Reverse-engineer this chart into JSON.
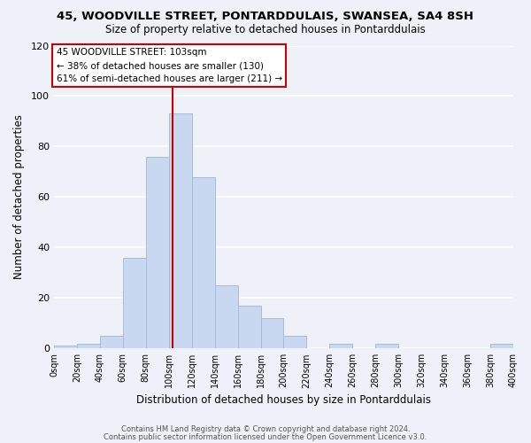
{
  "title": "45, WOODVILLE STREET, PONTARDDULAIS, SWANSEA, SA4 8SH",
  "subtitle": "Size of property relative to detached houses in Pontarddulais",
  "xlabel": "Distribution of detached houses by size in Pontarddulais",
  "ylabel": "Number of detached properties",
  "bar_color": "#c8d8f0",
  "bar_edge_color": "#a8bcd8",
  "bin_edges": [
    0,
    20,
    40,
    60,
    80,
    100,
    120,
    140,
    160,
    180,
    200,
    220,
    240,
    260,
    280,
    300,
    320,
    340,
    360,
    380,
    400
  ],
  "bar_heights": [
    1,
    2,
    5,
    36,
    76,
    93,
    68,
    25,
    17,
    12,
    5,
    0,
    2,
    0,
    2,
    0,
    0,
    0,
    0,
    2
  ],
  "vline_x": 103,
  "vline_color": "#cc0000",
  "ylim": [
    0,
    120
  ],
  "xlim": [
    0,
    400
  ],
  "annotation_text": "45 WOODVILLE STREET: 103sqm\n← 38% of detached houses are smaller (130)\n61% of semi-detached houses are larger (211) →",
  "annotation_box_color": "white",
  "annotation_box_edge": "#cc0000",
  "footer1": "Contains HM Land Registry data © Crown copyright and database right 2024.",
  "footer2": "Contains public sector information licensed under the Open Government Licence v3.0.",
  "background_color": "#eef2f8",
  "grid_color": "white",
  "yticks": [
    0,
    20,
    40,
    60,
    80,
    100,
    120
  ],
  "tick_labels": [
    "0sqm",
    "20sqm",
    "40sqm",
    "60sqm",
    "80sqm",
    "100sqm",
    "120sqm",
    "140sqm",
    "160sqm",
    "180sqm",
    "200sqm",
    "220sqm",
    "240sqm",
    "260sqm",
    "280sqm",
    "300sqm",
    "320sqm",
    "340sqm",
    "360sqm",
    "380sqm",
    "400sqm"
  ]
}
